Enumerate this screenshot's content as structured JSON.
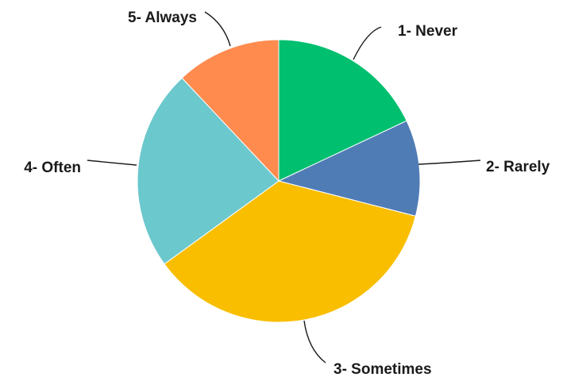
{
  "chart_data": {
    "type": "pie",
    "title": "",
    "slices": [
      {
        "label": "1- Never",
        "value": 18,
        "color": "#00BF6F"
      },
      {
        "label": "2- Rarely",
        "value": 11,
        "color": "#507CB6"
      },
      {
        "label": "3- Sometimes",
        "value": 36,
        "color": "#F9BE00"
      },
      {
        "label": "4- Often",
        "value": 23,
        "color": "#6BC8CD"
      },
      {
        "label": "5- Always",
        "value": 12,
        "color": "#FF8B4F"
      }
    ],
    "legend": "none",
    "label_style": "outside-with-leader-lines"
  }
}
